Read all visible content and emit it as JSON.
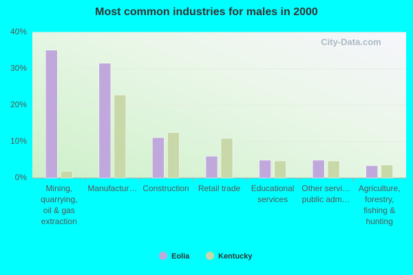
{
  "chart_data": {
    "type": "bar",
    "title": "Most common industries for males in 2000",
    "watermark": "City-Data.com",
    "categories": [
      [
        "Mining,",
        "quarrying,",
        "oil & gas",
        "extraction"
      ],
      [
        "Manufactur…"
      ],
      [
        "Construction"
      ],
      [
        "Retail trade"
      ],
      [
        "Educational",
        "services"
      ],
      [
        "Other servi…",
        "public adm…"
      ],
      [
        "Agriculture,",
        "forestry,",
        "fishing &",
        "hunting"
      ]
    ],
    "series": [
      {
        "name": "Eolia",
        "color": "#c0a8dc",
        "values": [
          35.1,
          31.5,
          11.1,
          6.0,
          4.9,
          4.9,
          3.4
        ]
      },
      {
        "name": "Kentucky",
        "color": "#c8d8a8",
        "values": [
          1.9,
          22.8,
          12.5,
          10.9,
          4.7,
          4.7,
          3.6
        ]
      }
    ],
    "ylim": [
      0,
      40
    ],
    "yticks": [
      {
        "value": 0,
        "label": "0%"
      },
      {
        "value": 10,
        "label": "10%"
      },
      {
        "value": 20,
        "label": "20%"
      },
      {
        "value": 30,
        "label": "30%"
      },
      {
        "value": 40,
        "label": "40%"
      }
    ],
    "grid": true,
    "legend": "bottom"
  }
}
